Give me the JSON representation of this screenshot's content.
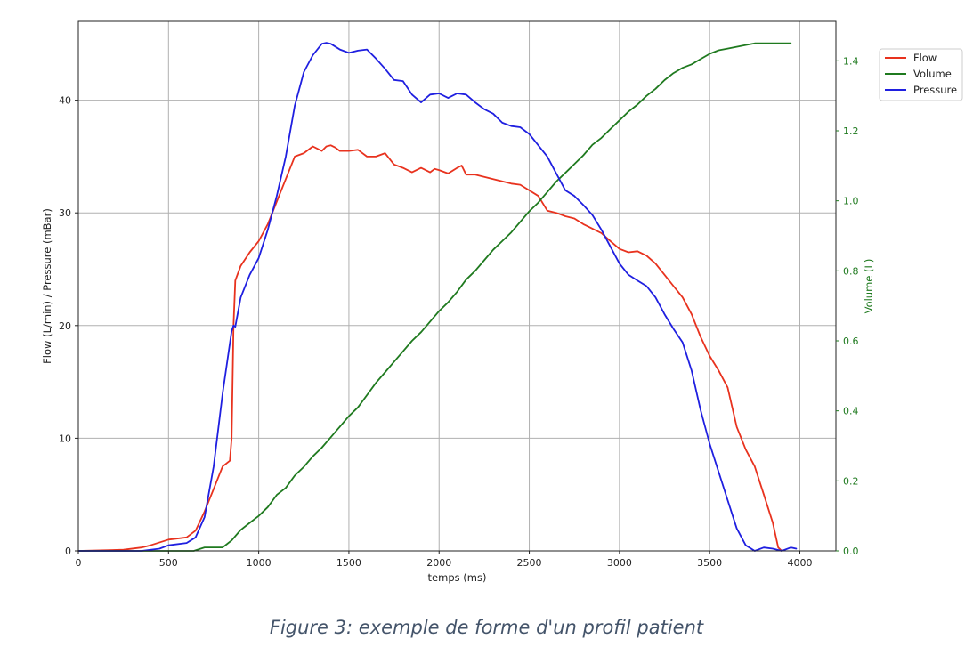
{
  "caption": "Figure 3: exemple de forme d'un profil patient",
  "chart_data": {
    "type": "line",
    "xlabel": "temps (ms)",
    "ylabel": "Flow (L/min) / Pressure (mBar)",
    "y2label": "Volume (L)",
    "xlim": [
      0,
      4200
    ],
    "ylim": [
      0,
      47
    ],
    "y2lim": [
      0,
      1.5127
    ],
    "x_ticks": [
      0,
      500,
      1000,
      1500,
      2000,
      2500,
      3000,
      3500,
      4000
    ],
    "y_ticks": [
      0,
      10,
      20,
      30,
      40
    ],
    "y2_ticks": [
      0.0,
      0.2,
      0.4,
      0.6,
      0.8,
      1.0,
      1.2,
      1.4
    ],
    "grid": true,
    "legend_position": "outside top-right",
    "colors": {
      "Flow": "#e8321e",
      "Volume": "#1f7a1f",
      "Pressure": "#1f1fe0",
      "volume_axis": "#1f7a1f"
    },
    "series": [
      {
        "name": "Flow",
        "axis": "left",
        "color": "#e8321e",
        "x": [
          0,
          250,
          350,
          400,
          500,
          600,
          650,
          700,
          750,
          800,
          840,
          850,
          860,
          870,
          900,
          950,
          1000,
          1050,
          1100,
          1150,
          1200,
          1250,
          1300,
          1350,
          1375,
          1400,
          1425,
          1450,
          1500,
          1550,
          1600,
          1650,
          1700,
          1750,
          1800,
          1850,
          1900,
          1950,
          1975,
          2000,
          2050,
          2100,
          2125,
          2150,
          2200,
          2250,
          2300,
          2350,
          2400,
          2450,
          2500,
          2550,
          2600,
          2650,
          2700,
          2750,
          2800,
          2850,
          2900,
          2950,
          3000,
          3050,
          3100,
          3150,
          3200,
          3250,
          3300,
          3350,
          3400,
          3450,
          3500,
          3550,
          3600,
          3650,
          3700,
          3750,
          3800,
          3850,
          3880,
          3900
        ],
        "y": [
          0.0,
          0.1,
          0.3,
          0.5,
          1.0,
          1.2,
          1.8,
          3.5,
          5.5,
          7.5,
          8.0,
          10.0,
          20.0,
          24.0,
          25.3,
          26.5,
          27.5,
          29.0,
          31.0,
          33.0,
          35.0,
          35.3,
          35.9,
          35.5,
          35.9,
          36.0,
          35.8,
          35.5,
          35.5,
          35.6,
          35.0,
          35.0,
          35.3,
          34.3,
          34.0,
          33.6,
          34.0,
          33.6,
          33.9,
          33.8,
          33.5,
          34.0,
          34.2,
          33.4,
          33.4,
          33.2,
          33.0,
          32.8,
          32.6,
          32.5,
          32.0,
          31.5,
          30.2,
          30.0,
          29.7,
          29.5,
          29.0,
          28.6,
          28.2,
          27.5,
          26.8,
          26.5,
          26.6,
          26.2,
          25.5,
          24.5,
          23.5,
          22.5,
          21.0,
          19.0,
          17.3,
          16.0,
          14.5,
          11.0,
          9.0,
          7.5,
          5.0,
          2.5,
          0.3,
          0.0
        ]
      },
      {
        "name": "Volume",
        "axis": "right",
        "color": "#1f7a1f",
        "x": [
          0,
          640,
          700,
          800,
          850,
          900,
          950,
          1000,
          1050,
          1100,
          1150,
          1200,
          1250,
          1300,
          1350,
          1400,
          1450,
          1500,
          1550,
          1600,
          1650,
          1700,
          1750,
          1800,
          1850,
          1900,
          1950,
          2000,
          2050,
          2100,
          2150,
          2200,
          2250,
          2300,
          2350,
          2400,
          2450,
          2500,
          2550,
          2600,
          2650,
          2700,
          2750,
          2800,
          2850,
          2900,
          2950,
          3000,
          3050,
          3100,
          3150,
          3200,
          3250,
          3300,
          3350,
          3400,
          3450,
          3500,
          3550,
          3600,
          3650,
          3700,
          3750,
          3800,
          3850,
          3900,
          3950
        ],
        "y": [
          0.0,
          0.0,
          0.01,
          0.01,
          0.03,
          0.06,
          0.08,
          0.1,
          0.125,
          0.16,
          0.18,
          0.215,
          0.24,
          0.27,
          0.295,
          0.325,
          0.355,
          0.385,
          0.41,
          0.445,
          0.48,
          0.51,
          0.54,
          0.57,
          0.6,
          0.625,
          0.655,
          0.685,
          0.71,
          0.74,
          0.775,
          0.8,
          0.83,
          0.86,
          0.885,
          0.91,
          0.94,
          0.97,
          0.995,
          1.025,
          1.055,
          1.08,
          1.105,
          1.13,
          1.16,
          1.18,
          1.205,
          1.23,
          1.255,
          1.275,
          1.3,
          1.32,
          1.345,
          1.365,
          1.38,
          1.39,
          1.405,
          1.42,
          1.43,
          1.435,
          1.44,
          1.445,
          1.45,
          1.45,
          1.45,
          1.45,
          1.45
        ]
      },
      {
        "name": "Pressure",
        "axis": "left",
        "color": "#1f1fe0",
        "x": [
          0,
          350,
          450,
          500,
          600,
          650,
          700,
          750,
          800,
          850,
          860,
          870,
          900,
          950,
          1000,
          1050,
          1100,
          1150,
          1200,
          1250,
          1300,
          1350,
          1375,
          1400,
          1450,
          1500,
          1550,
          1600,
          1650,
          1700,
          1750,
          1800,
          1850,
          1900,
          1950,
          2000,
          2050,
          2100,
          2150,
          2200,
          2250,
          2300,
          2350,
          2400,
          2450,
          2500,
          2550,
          2600,
          2650,
          2700,
          2750,
          2800,
          2850,
          2900,
          2950,
          3000,
          3050,
          3100,
          3150,
          3200,
          3250,
          3300,
          3350,
          3400,
          3450,
          3500,
          3550,
          3600,
          3650,
          3700,
          3750,
          3800,
          3850,
          3900,
          3950,
          3980
        ],
        "y": [
          0.0,
          0.0,
          0.2,
          0.5,
          0.7,
          1.2,
          3.0,
          7.5,
          14.0,
          19.5,
          20.0,
          19.9,
          22.5,
          24.5,
          26.0,
          28.5,
          31.5,
          35.0,
          39.5,
          42.5,
          44.0,
          45.0,
          45.1,
          45.0,
          44.5,
          44.2,
          44.4,
          44.5,
          43.7,
          42.8,
          41.8,
          41.7,
          40.5,
          39.8,
          40.5,
          40.6,
          40.2,
          40.6,
          40.5,
          39.8,
          39.2,
          38.8,
          38.0,
          37.7,
          37.6,
          37.0,
          36.0,
          35.0,
          33.5,
          32.0,
          31.5,
          30.7,
          29.8,
          28.5,
          27.0,
          25.5,
          24.5,
          24.0,
          23.5,
          22.5,
          21.0,
          19.7,
          18.5,
          16.0,
          12.5,
          9.5,
          7.0,
          4.5,
          2.0,
          0.5,
          0.0,
          0.3,
          0.2,
          0.0,
          0.3,
          0.2
        ]
      }
    ]
  }
}
